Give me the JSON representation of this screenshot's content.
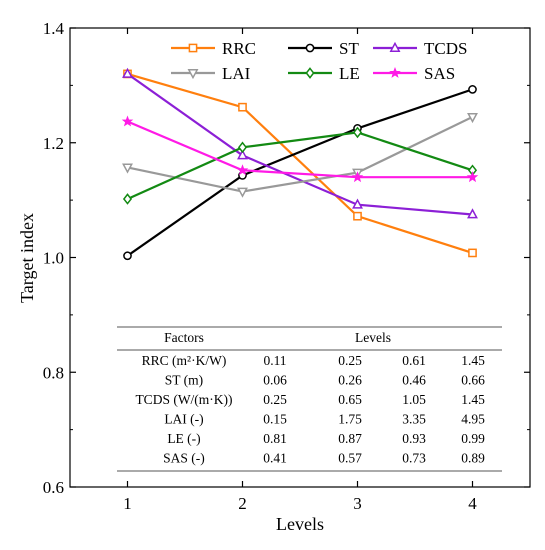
{
  "chart_data": {
    "type": "line",
    "x": [
      1,
      2,
      3,
      4
    ],
    "xlim": [
      0.5,
      4.5
    ],
    "ylim": [
      0.6,
      1.4
    ],
    "xticks": [
      "1",
      "2",
      "3",
      "4"
    ],
    "yticks": [
      "0.6",
      "0.8",
      "1.0",
      "1.2",
      "1.4"
    ],
    "xlabel": "Levels",
    "ylabel": "Target index",
    "grid": false,
    "legend_position": "top",
    "series": [
      {
        "name": "RRC",
        "color": "#ff7f0e",
        "marker": "square",
        "values": [
          1.32,
          1.262,
          1.072,
          1.008
        ]
      },
      {
        "name": "ST",
        "color": "#000000",
        "marker": "circle",
        "values": [
          1.003,
          1.143,
          1.225,
          1.293
        ]
      },
      {
        "name": "TCDS",
        "color": "#8c1fd6",
        "marker": "triangle-up",
        "values": [
          1.32,
          1.178,
          1.092,
          1.075
        ]
      },
      {
        "name": "LAI",
        "color": "#999999",
        "marker": "triangle-down",
        "values": [
          1.157,
          1.115,
          1.148,
          1.245
        ]
      },
      {
        "name": "LE",
        "color": "#138a13",
        "marker": "diamond",
        "values": [
          1.102,
          1.192,
          1.218,
          1.152
        ]
      },
      {
        "name": "SAS",
        "color": "#ff1ae6",
        "marker": "star",
        "values": [
          1.237,
          1.152,
          1.14,
          1.14
        ]
      }
    ],
    "table": {
      "header": [
        "Factors",
        "Levels"
      ],
      "rows": [
        [
          "RRC (m²·K/W)",
          "0.11",
          "0.25",
          "0.61",
          "1.45"
        ],
        [
          "ST (m)",
          "0.06",
          "0.26",
          "0.46",
          "0.66"
        ],
        [
          "TCDS (W/(m·K))",
          "0.25",
          "0.65",
          "1.05",
          "1.45"
        ],
        [
          "LAI (-)",
          "0.15",
          "1.75",
          "3.35",
          "4.95"
        ],
        [
          "LE (-)",
          "0.81",
          "0.87",
          "0.93",
          "0.99"
        ],
        [
          "SAS (-)",
          "0.41",
          "0.57",
          "0.73",
          "0.89"
        ]
      ]
    }
  }
}
